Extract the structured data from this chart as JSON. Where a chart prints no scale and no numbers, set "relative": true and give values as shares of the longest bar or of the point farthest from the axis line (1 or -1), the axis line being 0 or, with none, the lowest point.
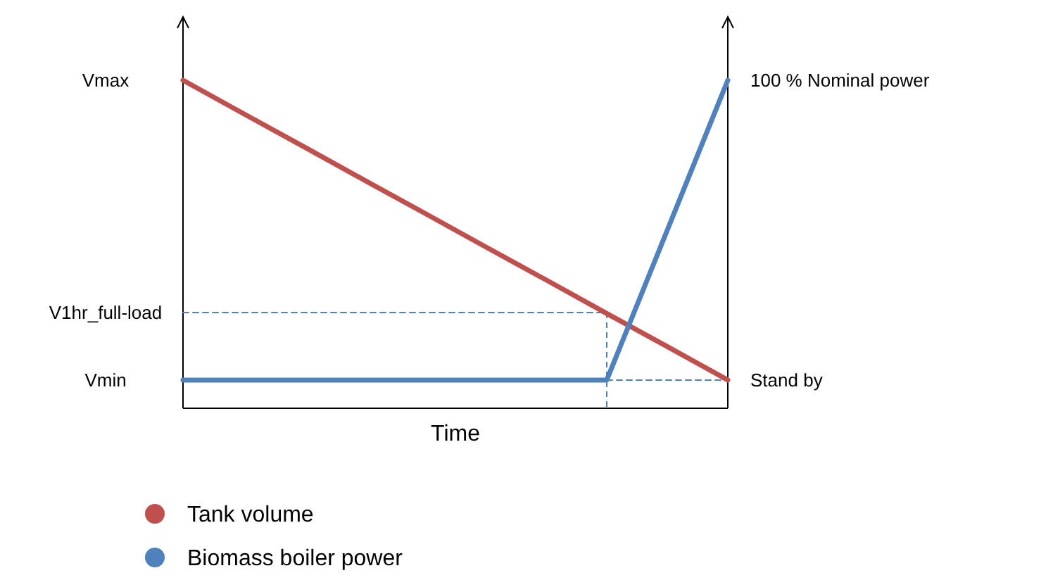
{
  "chart_data": {
    "type": "line",
    "xlabel": "Time",
    "relative": true,
    "categories": [
      null,
      null,
      null,
      null,
      null,
      null,
      null,
      null,
      null,
      null
    ],
    "legend": "bottom left",
    "annotations": [
      "Vmax",
      "V1hr_full-load",
      "Vmin",
      "100 % Nominal power",
      "Stand by"
    ],
    "series": [
      {
        "name": "Tank volume",
        "color": "#c0504d",
        "values": [
          1,
          0.898,
          0.797,
          0.695,
          0.594,
          0.492,
          0.391,
          0.289,
          0.188,
          0.086
        ]
      },
      {
        "name": "Biomass boiler power",
        "color": "#4f81bd",
        "values": [
          0.086,
          0.086,
          0.086,
          0.086,
          0.086,
          0.086,
          0.086,
          0.086,
          0.543,
          1
        ]
      },
      {
        "color": "#4f81bd",
        "line_style": "dashed",
        "values": [
          0.292,
          0.292,
          0.292,
          0.292,
          0.292,
          0.292,
          0.292,
          0.292,
          null,
          null
        ]
      },
      {
        "color": "#4f81bd",
        "line_style": "dashed",
        "values": [
          null,
          null,
          null,
          null,
          null,
          null,
          null,
          0.086,
          0.086,
          0.086
        ]
      }
    ]
  }
}
